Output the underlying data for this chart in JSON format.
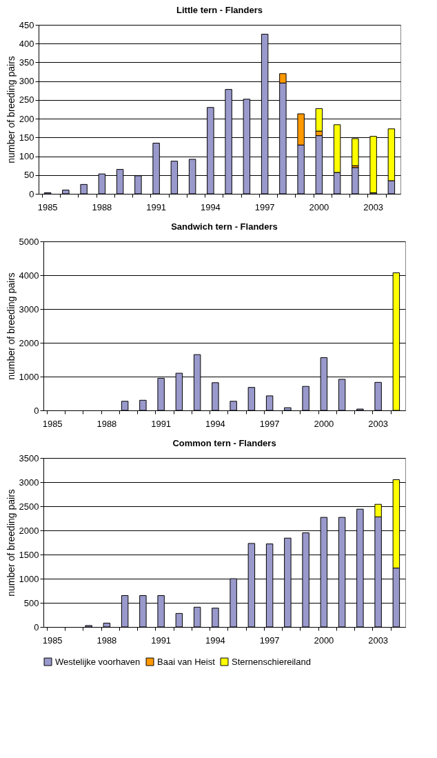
{
  "chart_data": [
    {
      "type": "bar",
      "stacked": true,
      "title": "Little tern - Flanders",
      "ylabel": "number of breeding pairs",
      "categories": [
        "1985",
        null,
        null,
        "1988",
        null,
        null,
        "1991",
        null,
        null,
        "1994",
        null,
        null,
        "1997",
        null,
        null,
        "2000",
        null,
        null,
        "2003",
        null
      ],
      "ylim": [
        0,
        450
      ],
      "yticks": [
        0,
        50,
        100,
        150,
        200,
        250,
        300,
        350,
        400,
        450
      ],
      "grid": "y",
      "series": [
        {
          "color": "#9999cc",
          "values": [
            3,
            10,
            25,
            53,
            65,
            48,
            135,
            87,
            92,
            230,
            278,
            252,
            425,
            295,
            130,
            155,
            57,
            70,
            3,
            35
          ]
        },
        {
          "color": "#ff9900",
          "values": [
            null,
            null,
            null,
            null,
            null,
            null,
            null,
            null,
            null,
            null,
            null,
            null,
            null,
            25,
            83,
            12,
            null,
            5,
            null,
            null
          ]
        },
        {
          "color": "#ffff00",
          "values": [
            null,
            null,
            null,
            null,
            null,
            null,
            null,
            null,
            null,
            null,
            null,
            null,
            null,
            null,
            null,
            60,
            127,
            72,
            150,
            138
          ]
        }
      ]
    },
    {
      "type": "bar",
      "stacked": true,
      "title": "Sandwich tern - Flanders",
      "ylabel": "number of breeding pairs",
      "categories": [
        "1985",
        null,
        null,
        "1988",
        null,
        null,
        "1991",
        null,
        null,
        "1994",
        null,
        null,
        "1997",
        null,
        null,
        "2000",
        null,
        null,
        "2003",
        null
      ],
      "ylim": [
        0,
        5000
      ],
      "yticks": [
        0,
        1000,
        2000,
        3000,
        4000,
        5000
      ],
      "grid": "y",
      "series": [
        {
          "color": "#9999cc",
          "values": [
            null,
            null,
            null,
            null,
            270,
            300,
            950,
            1100,
            1650,
            820,
            270,
            680,
            430,
            80,
            710,
            1560,
            920,
            40,
            830,
            null
          ]
        },
        {
          "color": "#ffff00",
          "values": [
            null,
            null,
            null,
            null,
            null,
            null,
            null,
            null,
            null,
            null,
            null,
            null,
            null,
            null,
            null,
            null,
            null,
            null,
            null,
            4070
          ]
        }
      ]
    },
    {
      "type": "bar",
      "stacked": true,
      "title": "Common tern - Flanders",
      "ylabel": "number of breeding pairs",
      "categories": [
        "1985",
        null,
        null,
        "1988",
        null,
        null,
        "1991",
        null,
        null,
        "1994",
        null,
        null,
        "1997",
        null,
        null,
        "2000",
        null,
        null,
        "2003",
        null
      ],
      "ylim": [
        0,
        3500
      ],
      "yticks": [
        0,
        500,
        1000,
        1500,
        2000,
        2500,
        3000,
        3500
      ],
      "grid": "y",
      "legend": "bottom",
      "series": [
        {
          "name": "Westelijke voorhaven",
          "color": "#9999cc",
          "values": [
            null,
            null,
            30,
            80,
            650,
            650,
            650,
            280,
            410,
            390,
            1000,
            1730,
            1720,
            1840,
            1950,
            2270,
            2270,
            2440,
            2280,
            1220
          ]
        },
        {
          "name": "Baai van Heist",
          "color": "#ff9900",
          "values": [
            null,
            null,
            null,
            null,
            null,
            null,
            null,
            null,
            null,
            null,
            null,
            null,
            null,
            null,
            null,
            null,
            null,
            null,
            null,
            null
          ]
        },
        {
          "name": "Sternenschiereiland",
          "color": "#ffff00",
          "values": [
            null,
            null,
            null,
            null,
            null,
            null,
            null,
            null,
            null,
            null,
            null,
            null,
            null,
            null,
            null,
            null,
            null,
            null,
            260,
            1830
          ]
        }
      ]
    }
  ]
}
